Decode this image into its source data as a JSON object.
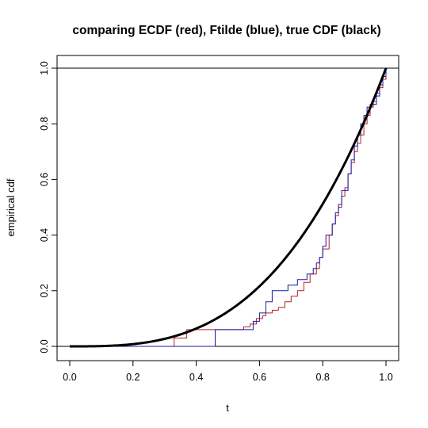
{
  "chart_data": {
    "type": "line",
    "title": "comparing ECDF (red), Ftilde (blue), true CDF (black)",
    "xlabel": "t",
    "ylabel": "empirical cdf",
    "xlim": [
      0.0,
      1.0
    ],
    "ylim": [
      0.0,
      1.0
    ],
    "x_ticks": [
      "0.0",
      "0.2",
      "0.4",
      "0.6",
      "0.8",
      "1.0"
    ],
    "y_ticks": [
      "0.0",
      "0.2",
      "0.4",
      "0.6",
      "0.8",
      "1.0"
    ],
    "reference_lines_y": [
      0,
      1
    ],
    "series_colors": {
      "ecdf": "#b22222",
      "ftilde": "#1a1aa6",
      "true_cdf": "#000000"
    },
    "series": [
      {
        "key": "ecdf",
        "style": "step",
        "x": [
          0.0,
          0.33,
          0.37,
          0.46,
          0.5,
          0.53,
          0.55,
          0.57,
          0.59,
          0.61,
          0.62,
          0.64,
          0.66,
          0.68,
          0.7,
          0.72,
          0.74,
          0.76,
          0.78,
          0.79,
          0.8,
          0.82,
          0.83,
          0.84,
          0.85,
          0.86,
          0.87,
          0.88,
          0.89,
          0.9,
          0.91,
          0.92,
          0.93,
          0.94,
          0.95,
          0.96,
          0.97,
          0.98,
          0.99,
          1.0
        ],
        "y": [
          0.0,
          0.03,
          0.06,
          0.06,
          0.06,
          0.06,
          0.07,
          0.08,
          0.1,
          0.11,
          0.12,
          0.13,
          0.14,
          0.16,
          0.18,
          0.2,
          0.23,
          0.26,
          0.28,
          0.32,
          0.35,
          0.4,
          0.44,
          0.47,
          0.5,
          0.54,
          0.57,
          0.62,
          0.66,
          0.7,
          0.73,
          0.76,
          0.8,
          0.83,
          0.86,
          0.88,
          0.91,
          0.93,
          0.96,
          1.0
        ]
      },
      {
        "key": "ftilde",
        "style": "step",
        "x": [
          0.0,
          0.17,
          0.46,
          0.58,
          0.6,
          0.62,
          0.64,
          0.69,
          0.72,
          0.75,
          0.77,
          0.78,
          0.79,
          0.8,
          0.81,
          0.83,
          0.84,
          0.85,
          0.86,
          0.88,
          0.89,
          0.9,
          0.91,
          0.92,
          0.93,
          0.94,
          0.95,
          0.97,
          0.98,
          0.99,
          1.0
        ],
        "y": [
          0.0,
          0.0,
          0.06,
          0.09,
          0.12,
          0.16,
          0.2,
          0.22,
          0.24,
          0.26,
          0.28,
          0.3,
          0.32,
          0.36,
          0.4,
          0.44,
          0.48,
          0.51,
          0.56,
          0.62,
          0.67,
          0.72,
          0.76,
          0.8,
          0.83,
          0.86,
          0.87,
          0.9,
          0.94,
          0.97,
          1.0
        ]
      },
      {
        "key": "true_cdf",
        "style": "curve",
        "formula": "F(t) = t^3",
        "x": [
          0.0,
          0.1,
          0.2,
          0.3,
          0.4,
          0.5,
          0.6,
          0.7,
          0.8,
          0.9,
          1.0
        ],
        "y": [
          0.0,
          0.001,
          0.008,
          0.027,
          0.064,
          0.125,
          0.216,
          0.343,
          0.512,
          0.729,
          1.0
        ]
      }
    ],
    "grid": false,
    "legend": "none"
  }
}
